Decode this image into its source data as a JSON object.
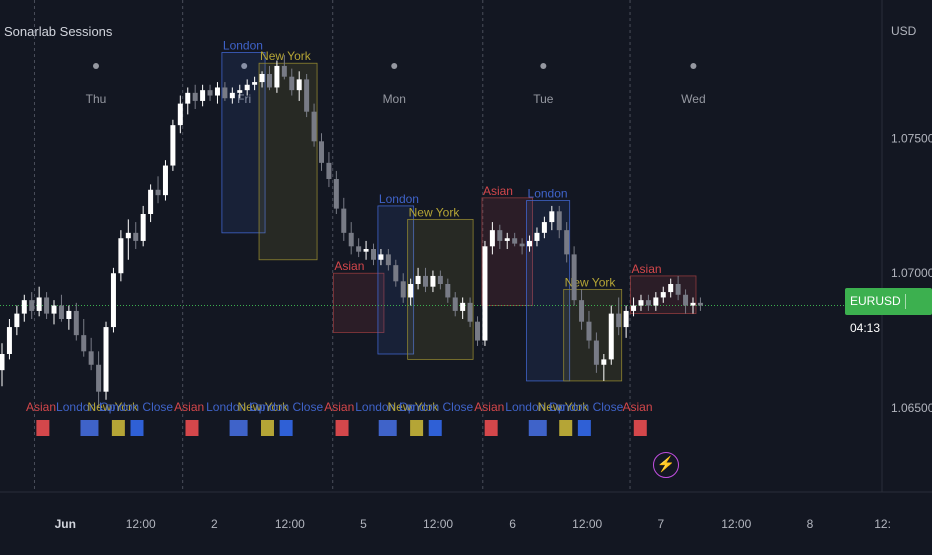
{
  "chart": {
    "title": "Sonarlab Sessions",
    "currency": "USD",
    "symbol": "EURUSD",
    "countdown": "04:13"
  },
  "chart_data": {
    "type": "candlestick",
    "ylim": [
      1.0618,
      1.08
    ],
    "y_ticks": [
      "1.07500",
      "1.07000",
      "1.06500"
    ],
    "x_ticks": [
      "Jun",
      "12:00",
      "2",
      "12:00",
      "5",
      "12:00",
      "6",
      "12:00",
      "7",
      "12:00",
      "8",
      "12:"
    ],
    "day_markers": [
      "Thu",
      "Fri",
      "Mon",
      "Tue",
      "Wed"
    ],
    "last_price": 1.0688,
    "colors": {
      "up": "#ffffff",
      "down": "#787b86",
      "asian": "#d4474b",
      "london": "#3f63c9",
      "new_york": "#b5a536",
      "close": "#2f60d6",
      "last_price": "#3cb04f"
    },
    "candles": [
      [
        1.0664,
        1.0674,
        1.0658,
        1.067
      ],
      [
        1.067,
        1.0683,
        1.0668,
        1.068
      ],
      [
        1.068,
        1.0688,
        1.0677,
        1.0685
      ],
      [
        1.0685,
        1.0692,
        1.0682,
        1.069
      ],
      [
        1.069,
        1.0693,
        1.0683,
        1.0686
      ],
      [
        1.0686,
        1.0695,
        1.0684,
        1.0691
      ],
      [
        1.0691,
        1.0693,
        1.0683,
        1.0685
      ],
      [
        1.0685,
        1.069,
        1.0681,
        1.0688
      ],
      [
        1.0688,
        1.0692,
        1.0682,
        1.0683
      ],
      [
        1.0683,
        1.0688,
        1.0679,
        1.0686
      ],
      [
        1.0686,
        1.0689,
        1.0675,
        1.0677
      ],
      [
        1.0677,
        1.0683,
        1.0669,
        1.0671
      ],
      [
        1.0671,
        1.0676,
        1.0664,
        1.0666
      ],
      [
        1.0666,
        1.0671,
        1.065,
        1.0656
      ],
      [
        1.0656,
        1.0682,
        1.0653,
        1.068
      ],
      [
        1.068,
        1.0702,
        1.0678,
        1.07
      ],
      [
        1.07,
        1.0716,
        1.0697,
        1.0713
      ],
      [
        1.0713,
        1.072,
        1.0705,
        1.0715
      ],
      [
        1.0715,
        1.0719,
        1.0709,
        1.0712
      ],
      [
        1.0712,
        1.0725,
        1.071,
        1.0722
      ],
      [
        1.0722,
        1.0733,
        1.0719,
        1.0731
      ],
      [
        1.0731,
        1.0736,
        1.0726,
        1.0729
      ],
      [
        1.0729,
        1.0742,
        1.0727,
        1.074
      ],
      [
        1.074,
        1.0757,
        1.0738,
        1.0755
      ],
      [
        1.0755,
        1.0766,
        1.0752,
        1.0763
      ],
      [
        1.0763,
        1.0769,
        1.0759,
        1.0767
      ],
      [
        1.0767,
        1.077,
        1.0761,
        1.0764
      ],
      [
        1.0764,
        1.077,
        1.0762,
        1.0768
      ],
      [
        1.0768,
        1.077,
        1.0764,
        1.0766
      ],
      [
        1.0766,
        1.0771,
        1.0763,
        1.0769
      ],
      [
        1.0769,
        1.0771,
        1.0764,
        1.0765
      ],
      [
        1.0765,
        1.0769,
        1.0763,
        1.0767
      ],
      [
        1.0767,
        1.077,
        1.0765,
        1.0768
      ],
      [
        1.0768,
        1.0772,
        1.0766,
        1.077
      ],
      [
        1.077,
        1.0773,
        1.0768,
        1.0771
      ],
      [
        1.0771,
        1.0775,
        1.0769,
        1.0774
      ],
      [
        1.0774,
        1.0777,
        1.0768,
        1.0769
      ],
      [
        1.0769,
        1.0779,
        1.0767,
        1.0777
      ],
      [
        1.0777,
        1.0781,
        1.0772,
        1.0773
      ],
      [
        1.0773,
        1.0776,
        1.0766,
        1.0768
      ],
      [
        1.0768,
        1.0775,
        1.0764,
        1.0772
      ],
      [
        1.0772,
        1.0774,
        1.0758,
        1.076
      ],
      [
        1.076,
        1.0763,
        1.0747,
        1.0749
      ],
      [
        1.0749,
        1.0752,
        1.0738,
        1.0741
      ],
      [
        1.0741,
        1.0745,
        1.0732,
        1.0735
      ],
      [
        1.0735,
        1.0738,
        1.0722,
        1.0724
      ],
      [
        1.0724,
        1.0728,
        1.0712,
        1.0715
      ],
      [
        1.0715,
        1.0719,
        1.0707,
        1.071
      ],
      [
        1.071,
        1.0713,
        1.0706,
        1.0708
      ],
      [
        1.0708,
        1.0712,
        1.0705,
        1.0709
      ],
      [
        1.0709,
        1.0711,
        1.0703,
        1.0705
      ],
      [
        1.0705,
        1.0709,
        1.0703,
        1.0707
      ],
      [
        1.0707,
        1.0709,
        1.0701,
        1.0703
      ],
      [
        1.0703,
        1.0705,
        1.0695,
        1.0697
      ],
      [
        1.0697,
        1.07,
        1.0689,
        1.0691
      ],
      [
        1.0691,
        1.0698,
        1.0688,
        1.0696
      ],
      [
        1.0696,
        1.0702,
        1.0694,
        1.0699
      ],
      [
        1.0699,
        1.0702,
        1.0693,
        1.0695
      ],
      [
        1.0695,
        1.0701,
        1.0693,
        1.0699
      ],
      [
        1.0699,
        1.0701,
        1.0694,
        1.0696
      ],
      [
        1.0696,
        1.0698,
        1.0689,
        1.0691
      ],
      [
        1.0691,
        1.0693,
        1.0684,
        1.0686
      ],
      [
        1.0686,
        1.0691,
        1.0683,
        1.0689
      ],
      [
        1.0689,
        1.0691,
        1.068,
        1.0682
      ],
      [
        1.0682,
        1.0684,
        1.0673,
        1.0675
      ],
      [
        1.0675,
        1.0712,
        1.0673,
        1.071
      ],
      [
        1.071,
        1.0719,
        1.0707,
        1.0716
      ],
      [
        1.0716,
        1.0718,
        1.0709,
        1.0712
      ],
      [
        1.0712,
        1.0715,
        1.0709,
        1.0713
      ],
      [
        1.0713,
        1.0715,
        1.071,
        1.0711
      ],
      [
        1.0711,
        1.0713,
        1.0707,
        1.071
      ],
      [
        1.071,
        1.0714,
        1.0708,
        1.0712
      ],
      [
        1.0712,
        1.0717,
        1.071,
        1.0715
      ],
      [
        1.0715,
        1.0721,
        1.0713,
        1.0719
      ],
      [
        1.0719,
        1.0725,
        1.0716,
        1.0723
      ],
      [
        1.0723,
        1.0725,
        1.0713,
        1.0716
      ],
      [
        1.0716,
        1.0719,
        1.0704,
        1.0707
      ],
      [
        1.0707,
        1.071,
        1.0688,
        1.069
      ],
      [
        1.069,
        1.0694,
        1.0679,
        1.0682
      ],
      [
        1.0682,
        1.0686,
        1.0672,
        1.0675
      ],
      [
        1.0675,
        1.0678,
        1.0663,
        1.0666
      ],
      [
        1.0666,
        1.067,
        1.066,
        1.0668
      ],
      [
        1.0668,
        1.0688,
        1.0666,
        1.0685
      ],
      [
        1.0685,
        1.0691,
        1.0677,
        1.068
      ],
      [
        1.068,
        1.0688,
        1.0676,
        1.0686
      ],
      [
        1.0686,
        1.0691,
        1.0684,
        1.0688
      ],
      [
        1.0688,
        1.0692,
        1.0686,
        1.069
      ],
      [
        1.069,
        1.0692,
        1.0686,
        1.0688
      ],
      [
        1.0688,
        1.0693,
        1.0686,
        1.0691
      ],
      [
        1.0691,
        1.0695,
        1.0689,
        1.0693
      ],
      [
        1.0693,
        1.0698,
        1.0691,
        1.0696
      ],
      [
        1.0696,
        1.0699,
        1.069,
        1.0692
      ],
      [
        1.0692,
        1.0694,
        1.0685,
        1.0688
      ],
      [
        1.0688,
        1.0691,
        1.0685,
        1.0689
      ],
      [
        1.0689,
        1.0691,
        1.0686,
        1.0688
      ]
    ],
    "sessions": [
      {
        "label": "London",
        "type": "london",
        "start": 30,
        "end": 35,
        "high": 1.0782,
        "low": 1.0715
      },
      {
        "label": "New York",
        "type": "new_york",
        "start": 35,
        "end": 42,
        "high": 1.0778,
        "low": 1.0705
      },
      {
        "label": "Asian",
        "type": "asian",
        "start": 45,
        "end": 51,
        "high": 1.07,
        "low": 1.0678
      },
      {
        "label": "London",
        "type": "london",
        "start": 51,
        "end": 55,
        "high": 1.0725,
        "low": 1.067
      },
      {
        "label": "New York",
        "type": "new_york",
        "start": 55,
        "end": 63,
        "high": 1.072,
        "low": 1.0668
      },
      {
        "label": "Asian",
        "type": "asian",
        "start": 65,
        "end": 71,
        "high": 1.0728,
        "low": 1.0688
      },
      {
        "label": "London",
        "type": "london",
        "start": 71,
        "end": 76,
        "high": 1.0727,
        "low": 1.066
      },
      {
        "label": "New York",
        "type": "new_york",
        "start": 76,
        "end": 83,
        "high": 1.0694,
        "low": 1.066
      },
      {
        "label": "Asian",
        "type": "asian",
        "start": 85,
        "end": 93,
        "high": 1.0699,
        "low": 1.0685
      }
    ],
    "session_labels": [
      {
        "text": "Asian",
        "type": "asian",
        "x": 0.044
      },
      {
        "text": "London Op",
        "type": "london",
        "x": 0.092
      },
      {
        "text": "New York",
        "type": "new_york",
        "x": 0.121
      },
      {
        "text": "London Close",
        "type": "london",
        "x": 0.146
      },
      {
        "text": "Asian",
        "type": "asian",
        "x": 0.203
      },
      {
        "text": "London Op",
        "type": "london",
        "x": 0.253
      },
      {
        "text": "New York",
        "type": "new_york",
        "x": 0.282
      },
      {
        "text": "London Close",
        "type": "london",
        "x": 0.307
      },
      {
        "text": "Asian",
        "type": "asian",
        "x": 0.364
      },
      {
        "text": "London Op",
        "type": "london",
        "x": 0.413
      },
      {
        "text": "New York",
        "type": "new_york",
        "x": 0.443
      },
      {
        "text": "London Close",
        "type": "london",
        "x": 0.468
      },
      {
        "text": "Asian",
        "type": "asian",
        "x": 0.525
      },
      {
        "text": "London Op",
        "type": "london",
        "x": 0.574
      },
      {
        "text": "New York",
        "type": "new_york",
        "x": 0.604
      },
      {
        "text": "London Close",
        "type": "london",
        "x": 0.629
      },
      {
        "text": "Asian",
        "type": "asian",
        "x": 0.684
      }
    ]
  }
}
